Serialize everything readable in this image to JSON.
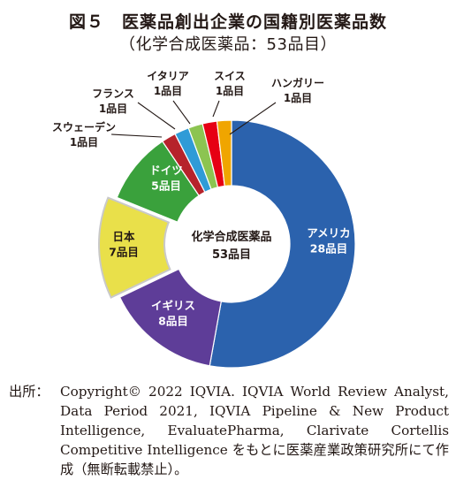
{
  "title": "図５　医薬品創出企業の国籍別医薬品数",
  "subtitle": "（化学合成医薬品：53品目）",
  "chart_data": {
    "type": "pie",
    "donut": true,
    "center_label": [
      "化学合成医薬品",
      "53品目"
    ],
    "total": 53,
    "slices": [
      {
        "name": "アメリカ",
        "value_label": "28品目",
        "value": 28,
        "color": "#2b62ad"
      },
      {
        "name": "イギリス",
        "value_label": "8品目",
        "value": 8,
        "color": "#5e3d98"
      },
      {
        "name": "日本",
        "value_label": "7品目",
        "value": 7,
        "color": "#e9e04a"
      },
      {
        "name": "ドイツ",
        "value_label": "5品目",
        "value": 5,
        "color": "#3aa13c"
      },
      {
        "name": "スウェーデン",
        "value_label": "1品目",
        "value": 1,
        "color": "#b6232b"
      },
      {
        "name": "フランス",
        "value_label": "1品目",
        "value": 1,
        "color": "#2f9bd7"
      },
      {
        "name": "イタリア",
        "value_label": "1品目",
        "value": 1,
        "color": "#8cc451"
      },
      {
        "name": "スイス",
        "value_label": "1品目",
        "value": 1,
        "color": "#e60013"
      },
      {
        "name": "ハンガリー",
        "value_label": "1品目",
        "value": 1,
        "color": "#f0a500"
      }
    ]
  },
  "source": {
    "label": "出所：",
    "text": "Copyright© 2022 IQVIA. IQVIA World Review Analyst, Data Period 2021, IQVIA Pipeline & New Product Intelligence, EvaluatePharma, Clarivate Cortellis Competitive Intelligence をもとに医薬産業政策研究所にて作成（無断転載禁止）。"
  }
}
